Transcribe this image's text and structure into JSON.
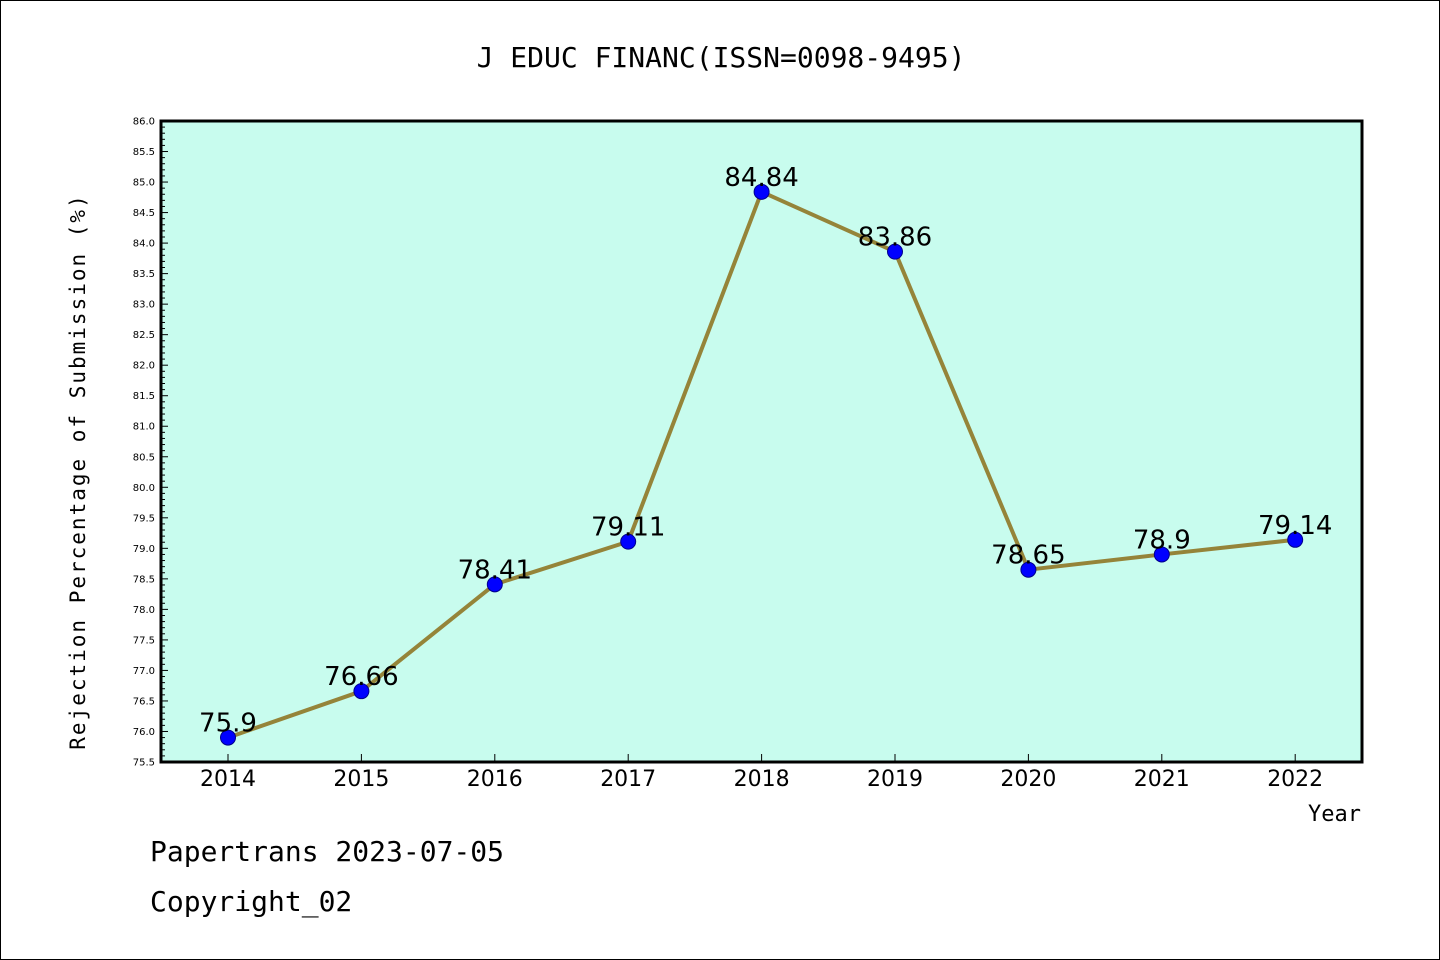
{
  "chart_data": {
    "type": "line",
    "title": "J EDUC FINANC(ISSN=0098-9495)",
    "xlabel": "Year",
    "ylabel": "Rejection Percentage of Submission (%)",
    "categories": [
      "2014",
      "2015",
      "2016",
      "2017",
      "2018",
      "2019",
      "2020",
      "2021",
      "2022"
    ],
    "series": [
      {
        "values": [
          75.9,
          76.66,
          78.41,
          79.11,
          84.84,
          83.86,
          78.65,
          78.9,
          79.14
        ],
        "labels": [
          "75.9",
          "76.66",
          "78.41",
          "79.11",
          "84.84",
          "83.86",
          "78.65",
          "78.9",
          "79.14"
        ]
      }
    ],
    "ylim": [
      75.5,
      86.0
    ],
    "yticks": [
      "75.5",
      "76.0",
      "76.5",
      "77.0",
      "77.5",
      "78.0",
      "78.5",
      "79.0",
      "79.5",
      "80.0",
      "80.5",
      "81.0",
      "81.5",
      "82.0",
      "82.5",
      "83.0",
      "83.5",
      "84.0",
      "84.5",
      "85.0",
      "85.5",
      "86.0"
    ],
    "grid": false,
    "legend": "none",
    "colors": {
      "plot_background": "#c8fcee",
      "line": "#958439",
      "marker_fill": "#0000ff",
      "marker_edge": "#00008b"
    }
  },
  "footer": {
    "line1": "Papertrans 2023-07-05",
    "line2": "Copyright_02"
  }
}
